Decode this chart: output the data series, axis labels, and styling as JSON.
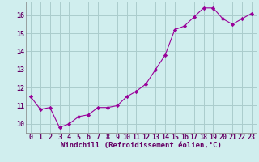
{
  "x": [
    0,
    1,
    2,
    3,
    4,
    5,
    6,
    7,
    8,
    9,
    10,
    11,
    12,
    13,
    14,
    15,
    16,
    17,
    18,
    19,
    20,
    21,
    22,
    23
  ],
  "y": [
    11.5,
    10.8,
    10.9,
    9.8,
    10.0,
    10.4,
    10.5,
    10.9,
    10.9,
    11.0,
    11.5,
    11.8,
    12.2,
    13.0,
    13.8,
    15.2,
    15.4,
    15.9,
    16.4,
    16.4,
    15.8,
    15.5,
    15.8,
    16.1
  ],
  "line_color": "#990099",
  "marker": "D",
  "marker_size": 2.2,
  "background_color": "#d0eeee",
  "grid_color": "#aacccc",
  "xlabel": "Windchill (Refroidissement éolien,°C)",
  "xlim": [
    -0.5,
    23.5
  ],
  "ylim": [
    9.5,
    16.75
  ],
  "yticks": [
    10,
    11,
    12,
    13,
    14,
    15,
    16
  ],
  "xticks": [
    0,
    1,
    2,
    3,
    4,
    5,
    6,
    7,
    8,
    9,
    10,
    11,
    12,
    13,
    14,
    15,
    16,
    17,
    18,
    19,
    20,
    21,
    22,
    23
  ],
  "tick_color": "#660066",
  "label_color": "#660066",
  "label_fontsize": 6.5,
  "tick_fontsize": 6.0,
  "line_width": 0.8
}
